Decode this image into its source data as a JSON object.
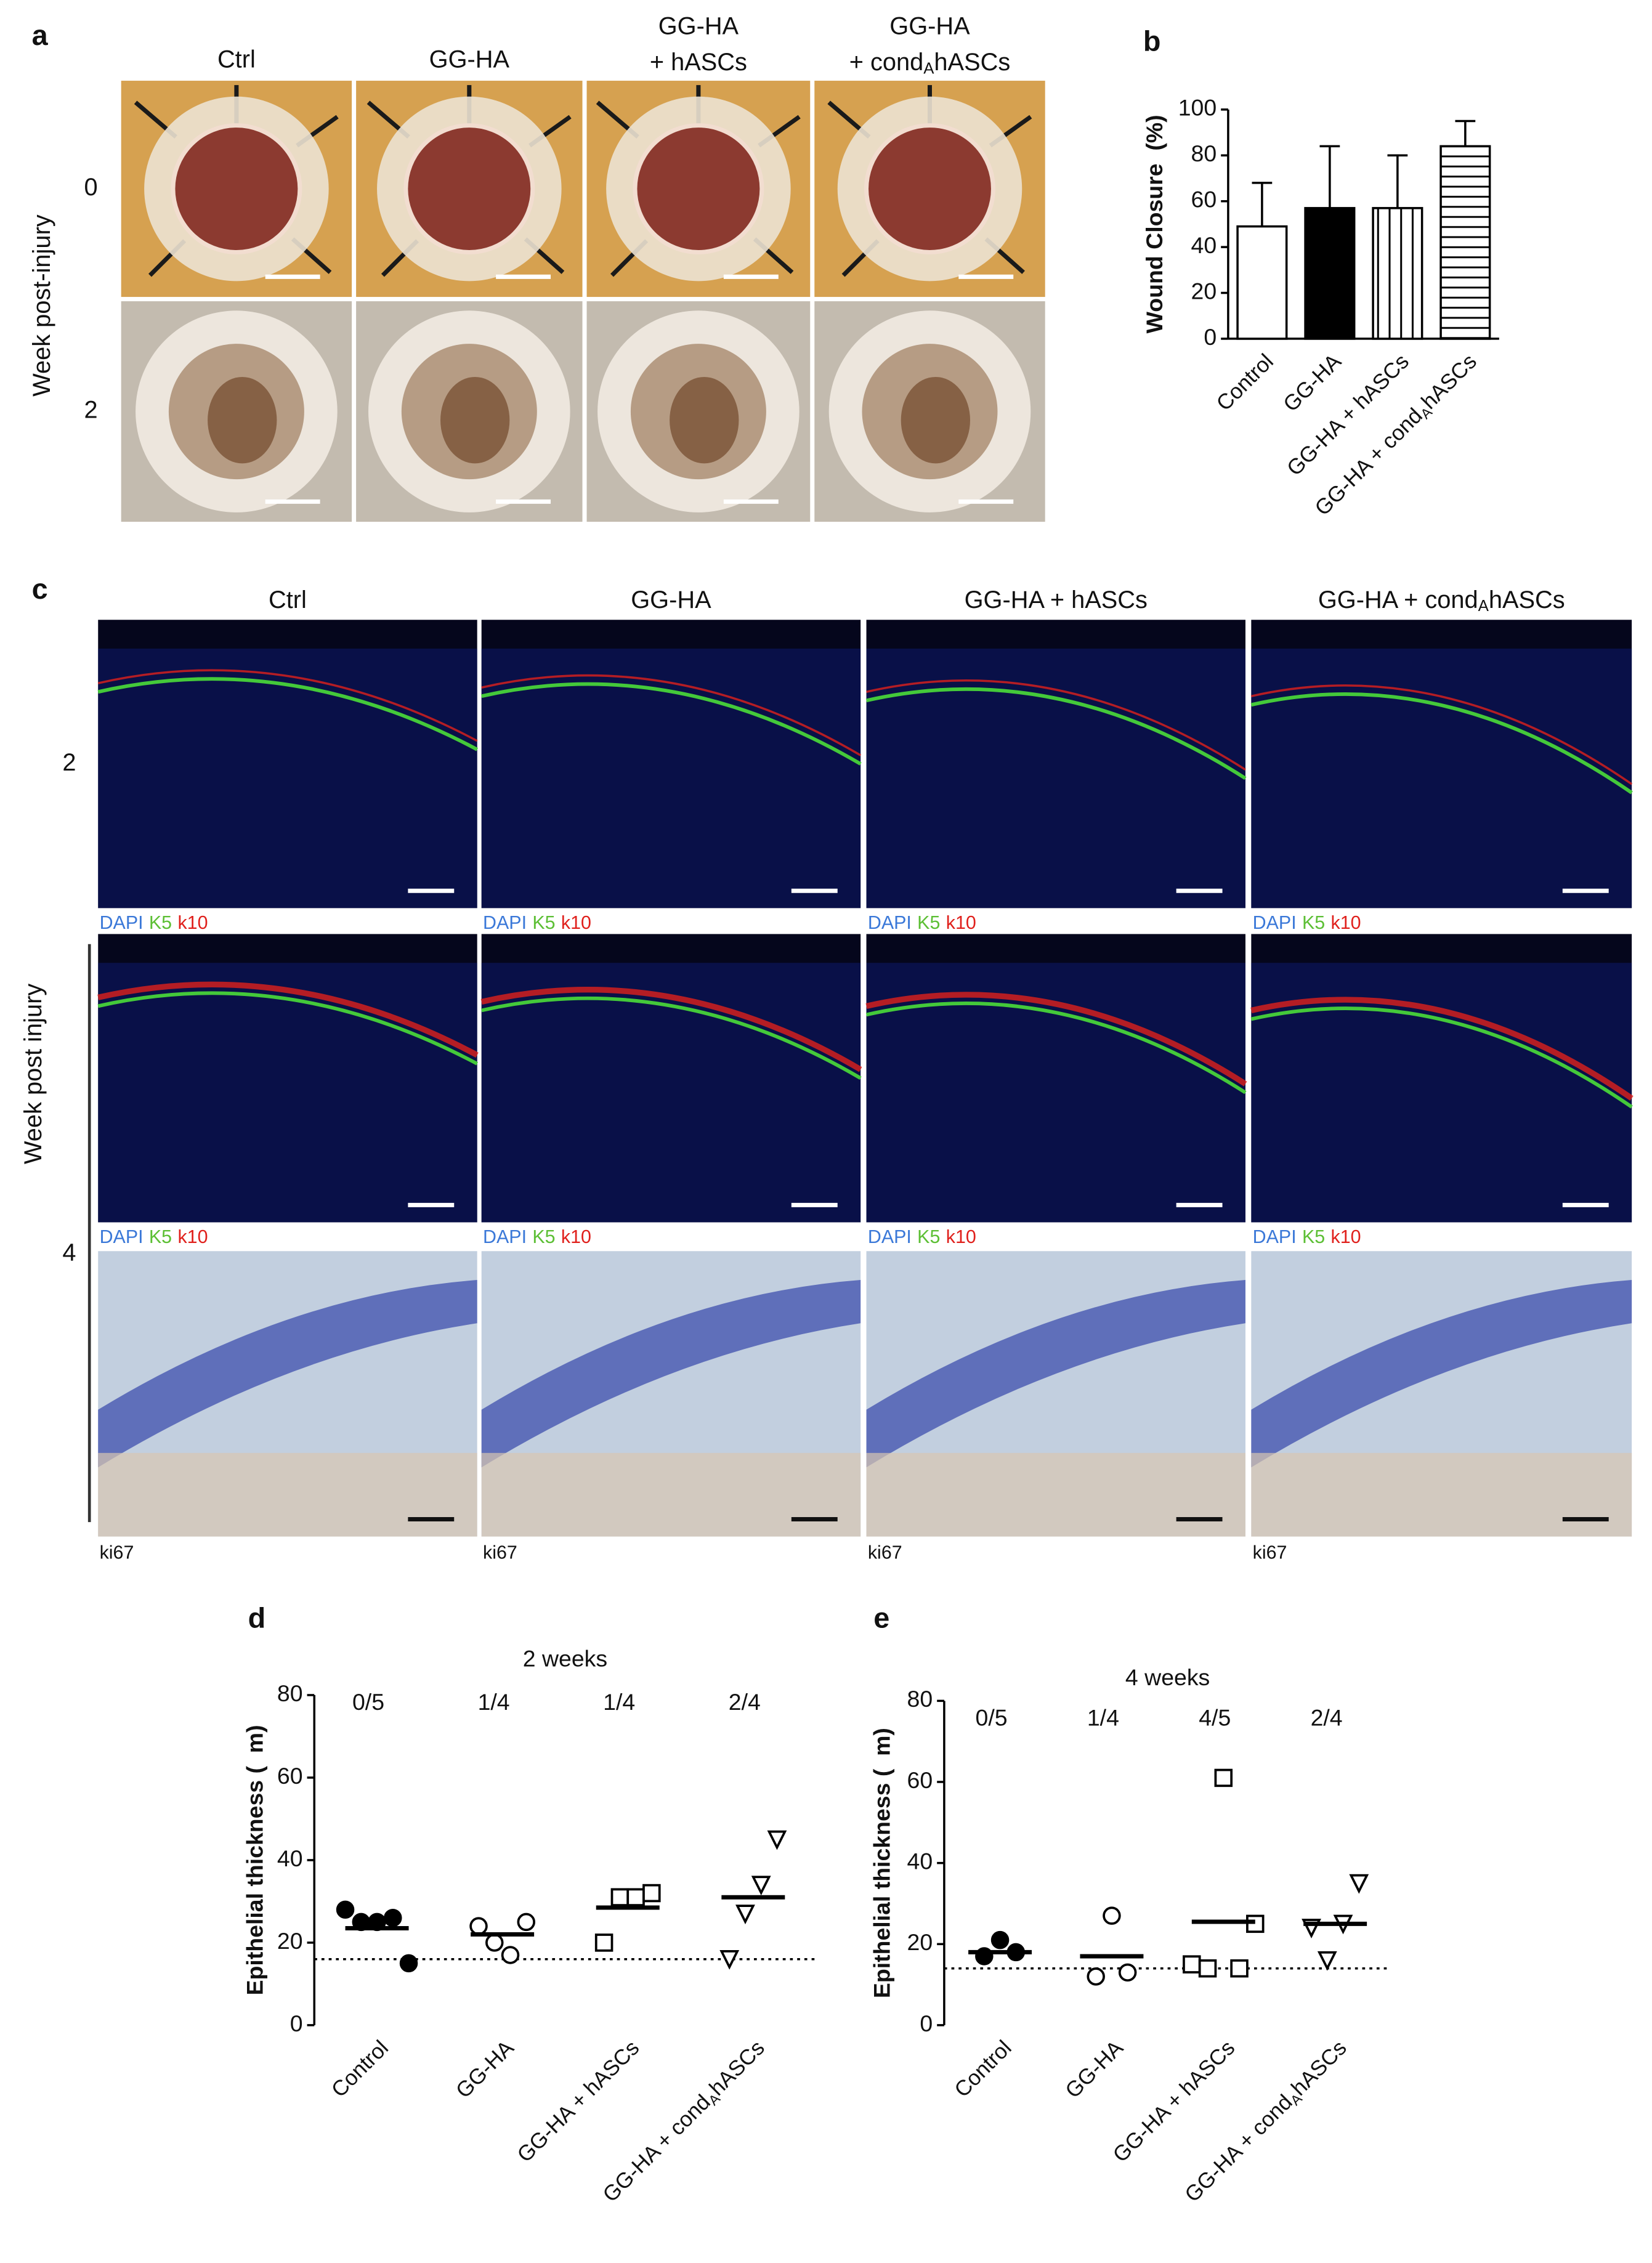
{
  "panels": {
    "a": {
      "label": "a",
      "headers": [
        {
          "lines": [
            "Ctrl"
          ]
        },
        {
          "lines": [
            "GG-HA"
          ]
        },
        {
          "lines": [
            "GG-HA",
            "+ hASCs"
          ]
        },
        {
          "lines": [
            "GG-HA",
            "+ cond"
          ],
          "sub": "A",
          "tail": "hASCs"
        }
      ],
      "rows": [
        "0",
        "2"
      ],
      "axis_title": "Week post-injury"
    },
    "c": {
      "label": "c",
      "headers": [
        {
          "text": "Ctrl"
        },
        {
          "text": "GG-HA"
        },
        {
          "text": "GG-HA + hASCs"
        },
        {
          "text": "GG-HA + cond",
          "sub": "A",
          "tail": "hASCs"
        }
      ],
      "rows": [
        "2",
        "4"
      ],
      "axis_title": "Week post injury",
      "stains": [
        "DAPI",
        "K5",
        "k10"
      ],
      "stain_colors": [
        "#3a78d8",
        "#5cbf34",
        "#e0201c"
      ],
      "ihc": "ki67"
    }
  },
  "chart_data": [
    {
      "type": "bar",
      "label": "b",
      "ylabel": "Wound Closure  (%)",
      "ylim": [
        0,
        100
      ],
      "yticks": [
        0,
        20,
        40,
        60,
        80,
        100
      ],
      "categories": [
        {
          "text": "Control"
        },
        {
          "text": "GG-HA"
        },
        {
          "text": "GG-HA + hASCs"
        },
        {
          "text": "GG-HA + cond",
          "sub": "A",
          "tail": "hASCs"
        }
      ],
      "values": [
        49,
        57,
        57,
        84
      ],
      "errors": [
        19,
        27,
        23,
        11
      ],
      "fills": [
        "white",
        "black",
        "vertical",
        "horizontal"
      ]
    },
    {
      "type": "scatter",
      "label": "d",
      "title": "2 weeks",
      "ylabel": "Epithelial thickness (  m)",
      "ylim": [
        0,
        80
      ],
      "yticks": [
        0,
        20,
        40,
        60,
        80
      ],
      "categories": [
        {
          "text": "Control"
        },
        {
          "text": "GG-HA"
        },
        {
          "text": "GG-HA + hASCs"
        },
        {
          "text": "GG-HA + cond",
          "sub": "A",
          "tail": "hASCs"
        }
      ],
      "fractions": [
        "0/5",
        "1/4",
        "1/4",
        "2/4"
      ],
      "markers": [
        "filled-circle",
        "open-circle",
        "open-square",
        "open-triangle-down"
      ],
      "groups": [
        [
          28,
          25,
          25,
          26,
          15
        ],
        [
          24,
          20,
          17,
          25
        ],
        [
          20,
          31,
          31,
          32
        ],
        [
          16,
          27,
          34,
          45
        ]
      ],
      "means": [
        23.5,
        22,
        28.5,
        31
      ],
      "reference_line": 16
    },
    {
      "type": "scatter",
      "label": "e",
      "title": "4 weeks",
      "ylabel": "Epithelial thickness (  m)",
      "ylim": [
        0,
        80
      ],
      "yticks": [
        0,
        20,
        40,
        60,
        80
      ],
      "categories": [
        {
          "text": "Control"
        },
        {
          "text": "GG-HA"
        },
        {
          "text": "GG-HA + hASCs"
        },
        {
          "text": "GG-HA + cond",
          "sub": "A",
          "tail": "hASCs"
        }
      ],
      "fractions": [
        "0/5",
        "1/4",
        "4/5",
        "2/4"
      ],
      "markers": [
        "filled-circle",
        "open-circle",
        "open-square",
        "open-triangle-down"
      ],
      "groups": [
        [
          17,
          21,
          18
        ],
        [
          12,
          27,
          13
        ],
        [
          15,
          14,
          61,
          14,
          25
        ],
        [
          24,
          16,
          25,
          35
        ]
      ],
      "means": [
        18,
        17,
        25.5,
        25
      ],
      "reference_line": 14
    }
  ]
}
